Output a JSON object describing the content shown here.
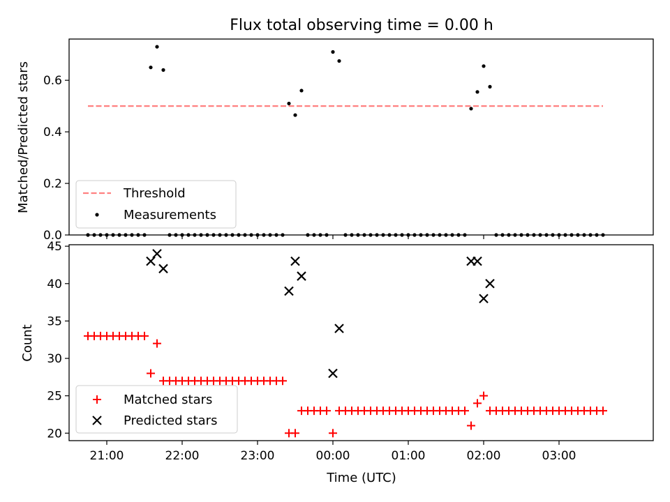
{
  "title": "Flux total observing time = 0.00 h",
  "chart_data": [
    {
      "type": "scatter",
      "ylabel": "Matched/Predicted stars",
      "ylim": [
        0,
        0.76
      ],
      "yticks": [
        "0.0",
        "0.2",
        "0.4",
        "0.6"
      ],
      "ytick_values": [
        0,
        0.2,
        0.4,
        0.6
      ],
      "legend": {
        "location": "lower-left",
        "entries": [
          "Threshold",
          "Measurements"
        ]
      },
      "threshold": {
        "name": "Threshold",
        "value": 0.5,
        "x_range": [
          "20:45",
          "03:35"
        ],
        "color": "#ff8080"
      },
      "series": [
        {
          "name": "Measurements",
          "color": "#000000",
          "points": [
            [
              "20:45",
              0
            ],
            [
              "20:50",
              0
            ],
            [
              "20:55",
              0
            ],
            [
              "21:00",
              0
            ],
            [
              "21:05",
              0
            ],
            [
              "21:10",
              0
            ],
            [
              "21:15",
              0
            ],
            [
              "21:20",
              0
            ],
            [
              "21:25",
              0
            ],
            [
              "21:30",
              0
            ],
            [
              "21:35",
              0.65
            ],
            [
              "21:40",
              0.73
            ],
            [
              "21:45",
              0.64
            ],
            [
              "21:50",
              0
            ],
            [
              "21:55",
              0
            ],
            [
              "22:00",
              0
            ],
            [
              "22:05",
              0
            ],
            [
              "22:10",
              0
            ],
            [
              "22:15",
              0
            ],
            [
              "22:20",
              0
            ],
            [
              "22:25",
              0
            ],
            [
              "22:30",
              0
            ],
            [
              "22:35",
              0
            ],
            [
              "22:40",
              0
            ],
            [
              "22:45",
              0
            ],
            [
              "22:50",
              0
            ],
            [
              "22:55",
              0
            ],
            [
              "23:00",
              0
            ],
            [
              "23:05",
              0
            ],
            [
              "23:10",
              0
            ],
            [
              "23:15",
              0
            ],
            [
              "23:20",
              0
            ],
            [
              "23:25",
              0.51
            ],
            [
              "23:30",
              0.465
            ],
            [
              "23:35",
              0.56
            ],
            [
              "23:40",
              0
            ],
            [
              "23:45",
              0
            ],
            [
              "23:50",
              0
            ],
            [
              "23:55",
              0
            ],
            [
              "00:00",
              0.71
            ],
            [
              "00:05",
              0.675
            ],
            [
              "00:10",
              0
            ],
            [
              "00:15",
              0
            ],
            [
              "00:20",
              0
            ],
            [
              "00:25",
              0
            ],
            [
              "00:30",
              0
            ],
            [
              "00:35",
              0
            ],
            [
              "00:40",
              0
            ],
            [
              "00:45",
              0
            ],
            [
              "00:50",
              0
            ],
            [
              "00:55",
              0
            ],
            [
              "01:00",
              0
            ],
            [
              "01:05",
              0
            ],
            [
              "01:10",
              0
            ],
            [
              "01:15",
              0
            ],
            [
              "01:20",
              0
            ],
            [
              "01:25",
              0
            ],
            [
              "01:30",
              0
            ],
            [
              "01:35",
              0
            ],
            [
              "01:40",
              0
            ],
            [
              "01:45",
              0
            ],
            [
              "01:50",
              0.49
            ],
            [
              "01:55",
              0.555
            ],
            [
              "02:00",
              0.655
            ],
            [
              "02:05",
              0.575
            ],
            [
              "02:10",
              0
            ],
            [
              "02:15",
              0
            ],
            [
              "02:20",
              0
            ],
            [
              "02:25",
              0
            ],
            [
              "02:30",
              0
            ],
            [
              "02:35",
              0
            ],
            [
              "02:40",
              0
            ],
            [
              "02:45",
              0
            ],
            [
              "02:50",
              0
            ],
            [
              "02:55",
              0
            ],
            [
              "03:00",
              0
            ],
            [
              "03:05",
              0
            ],
            [
              "03:10",
              0
            ],
            [
              "03:15",
              0
            ],
            [
              "03:20",
              0
            ],
            [
              "03:25",
              0
            ],
            [
              "03:30",
              0
            ],
            [
              "03:35",
              0
            ]
          ]
        }
      ]
    },
    {
      "type": "scatter",
      "xlabel": "Time (UTC)",
      "ylabel": "Count",
      "xlim": [
        "20:30",
        "04:15"
      ],
      "xticks": [
        "21:00",
        "22:00",
        "23:00",
        "00:00",
        "01:00",
        "02:00",
        "03:00"
      ],
      "ylim": [
        19,
        45.2
      ],
      "yticks": [
        "20",
        "25",
        "30",
        "35",
        "40",
        "45"
      ],
      "ytick_values": [
        20,
        25,
        30,
        35,
        40,
        45
      ],
      "legend": {
        "location": "lower-left",
        "entries": [
          "Matched stars",
          "Predicted stars"
        ]
      },
      "series": [
        {
          "name": "Matched stars",
          "marker": "plus",
          "color": "#ff0000",
          "points": [
            [
              "20:45",
              33
            ],
            [
              "20:50",
              33
            ],
            [
              "20:55",
              33
            ],
            [
              "21:00",
              33
            ],
            [
              "21:05",
              33
            ],
            [
              "21:10",
              33
            ],
            [
              "21:15",
              33
            ],
            [
              "21:20",
              33
            ],
            [
              "21:25",
              33
            ],
            [
              "21:30",
              33
            ],
            [
              "21:35",
              28
            ],
            [
              "21:40",
              32
            ],
            [
              "21:45",
              27
            ],
            [
              "21:50",
              27
            ],
            [
              "21:55",
              27
            ],
            [
              "22:00",
              27
            ],
            [
              "22:05",
              27
            ],
            [
              "22:10",
              27
            ],
            [
              "22:15",
              27
            ],
            [
              "22:20",
              27
            ],
            [
              "22:25",
              27
            ],
            [
              "22:30",
              27
            ],
            [
              "22:35",
              27
            ],
            [
              "22:40",
              27
            ],
            [
              "22:45",
              27
            ],
            [
              "22:50",
              27
            ],
            [
              "22:55",
              27
            ],
            [
              "23:00",
              27
            ],
            [
              "23:05",
              27
            ],
            [
              "23:10",
              27
            ],
            [
              "23:15",
              27
            ],
            [
              "23:20",
              27
            ],
            [
              "23:25",
              20
            ],
            [
              "23:30",
              20
            ],
            [
              "23:35",
              23
            ],
            [
              "23:40",
              23
            ],
            [
              "23:45",
              23
            ],
            [
              "23:50",
              23
            ],
            [
              "23:55",
              23
            ],
            [
              "00:00",
              20
            ],
            [
              "00:05",
              23
            ],
            [
              "00:10",
              23
            ],
            [
              "00:15",
              23
            ],
            [
              "00:20",
              23
            ],
            [
              "00:25",
              23
            ],
            [
              "00:30",
              23
            ],
            [
              "00:35",
              23
            ],
            [
              "00:40",
              23
            ],
            [
              "00:45",
              23
            ],
            [
              "00:50",
              23
            ],
            [
              "00:55",
              23
            ],
            [
              "01:00",
              23
            ],
            [
              "01:05",
              23
            ],
            [
              "01:10",
              23
            ],
            [
              "01:15",
              23
            ],
            [
              "01:20",
              23
            ],
            [
              "01:25",
              23
            ],
            [
              "01:30",
              23
            ],
            [
              "01:35",
              23
            ],
            [
              "01:40",
              23
            ],
            [
              "01:45",
              23
            ],
            [
              "01:50",
              21
            ],
            [
              "01:55",
              24
            ],
            [
              "02:00",
              25
            ],
            [
              "02:05",
              23
            ],
            [
              "02:10",
              23
            ],
            [
              "02:15",
              23
            ],
            [
              "02:20",
              23
            ],
            [
              "02:25",
              23
            ],
            [
              "02:30",
              23
            ],
            [
              "02:35",
              23
            ],
            [
              "02:40",
              23
            ],
            [
              "02:45",
              23
            ],
            [
              "02:50",
              23
            ],
            [
              "02:55",
              23
            ],
            [
              "03:00",
              23
            ],
            [
              "03:05",
              23
            ],
            [
              "03:10",
              23
            ],
            [
              "03:15",
              23
            ],
            [
              "03:20",
              23
            ],
            [
              "03:25",
              23
            ],
            [
              "03:30",
              23
            ],
            [
              "03:35",
              23
            ]
          ]
        },
        {
          "name": "Predicted stars",
          "marker": "x",
          "color": "#000000",
          "points": [
            [
              "21:35",
              43
            ],
            [
              "21:40",
              44
            ],
            [
              "21:45",
              42
            ],
            [
              "23:25",
              39
            ],
            [
              "23:30",
              43
            ],
            [
              "23:35",
              41
            ],
            [
              "00:00",
              28
            ],
            [
              "00:05",
              34
            ],
            [
              "01:50",
              43
            ],
            [
              "01:55",
              43
            ],
            [
              "02:00",
              38
            ],
            [
              "02:05",
              40
            ]
          ]
        }
      ]
    }
  ]
}
